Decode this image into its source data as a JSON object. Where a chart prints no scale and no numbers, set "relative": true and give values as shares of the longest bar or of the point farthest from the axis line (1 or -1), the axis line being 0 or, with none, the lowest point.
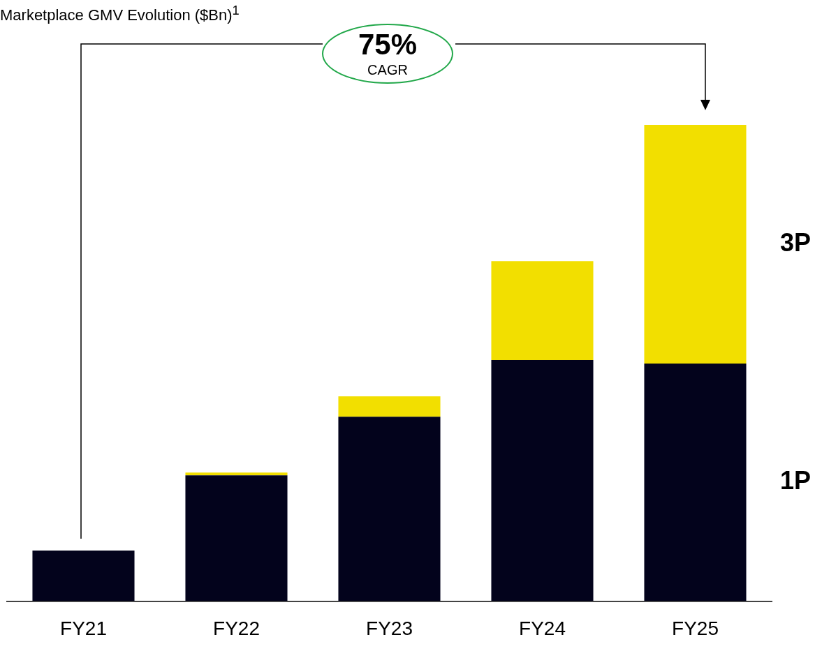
{
  "chart_data": {
    "type": "bar",
    "title": "Marketplace GMV Evolution ($Bn)$^{1}$",
    "categories": [
      "FY21",
      "FY22",
      "FY23",
      "FY24",
      "FY25"
    ],
    "stacked": true,
    "relative": true,
    "grid": false,
    "legend": false,
    "series": [
      {
        "name": "1P",
        "color": "#03031c",
        "values": [
          0.106,
          0.264,
          0.387,
          0.506,
          0.499
        ]
      },
      {
        "name": "3P",
        "color": "#f2df00",
        "values": [
          0,
          0.006,
          0.043,
          0.208,
          0.501
        ]
      }
    ],
    "annotations": [
      "75%",
      "CAGR"
    ]
  }
}
